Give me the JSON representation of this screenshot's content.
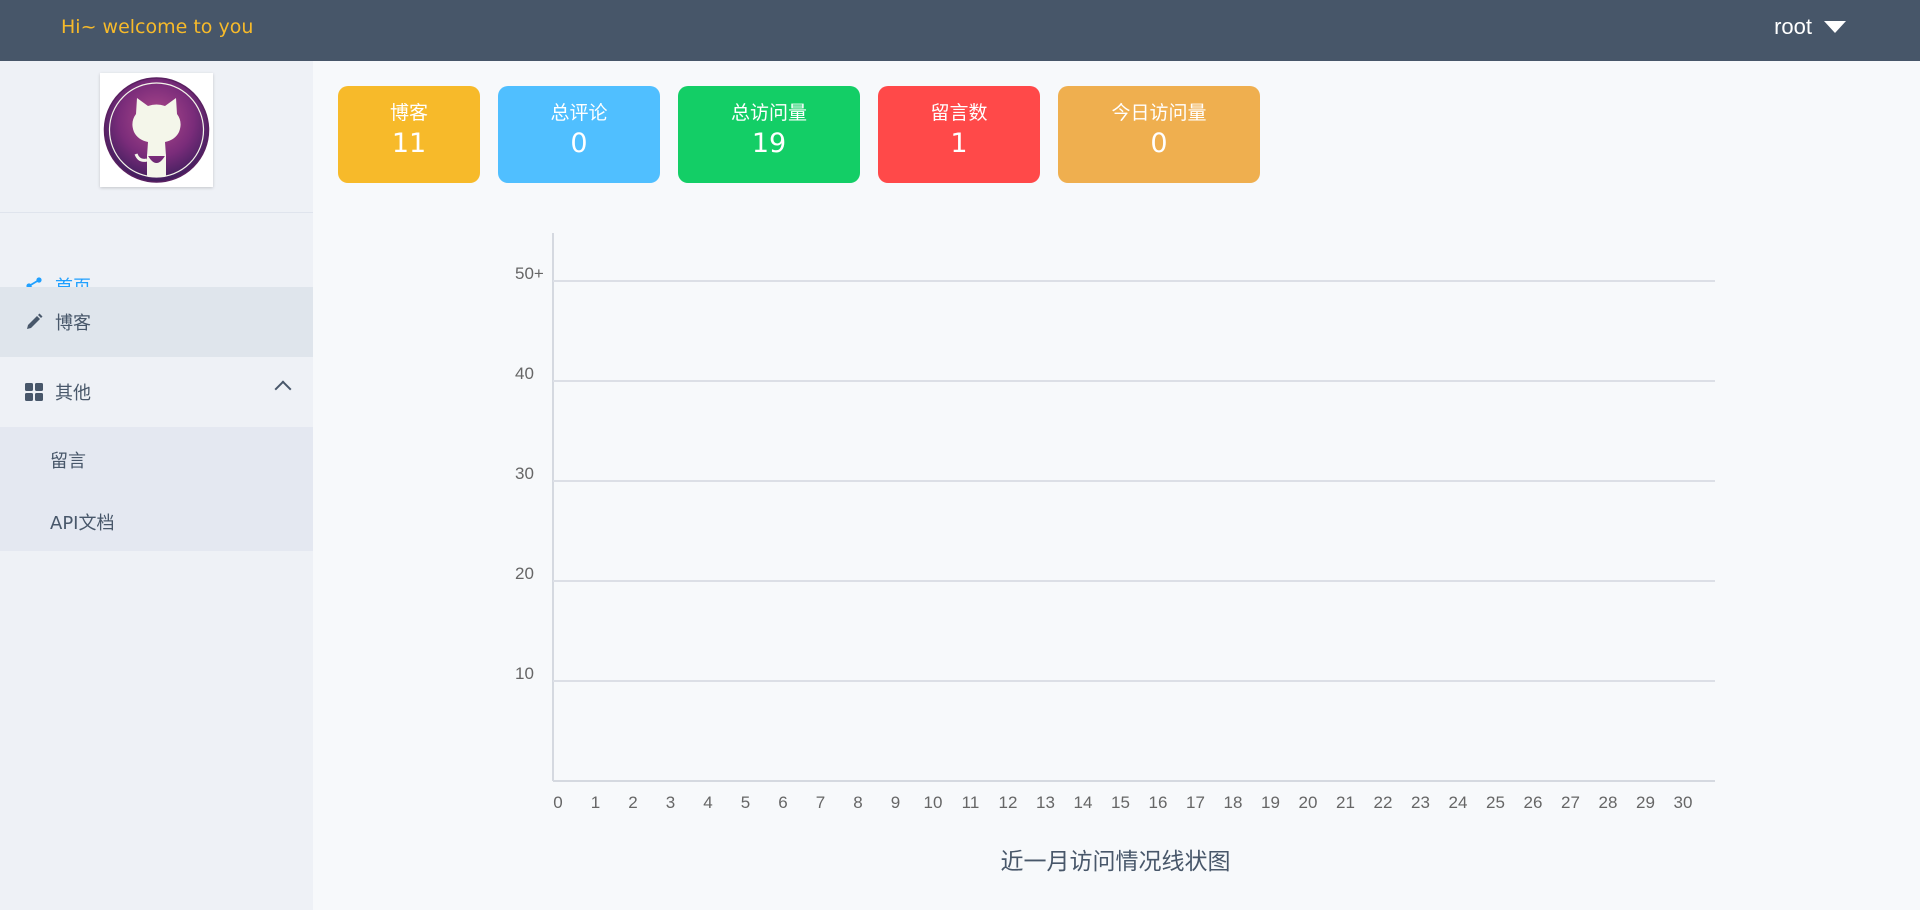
{
  "header": {
    "welcome": "Hi~ welcome to you",
    "user": "root"
  },
  "sidebar": {
    "menu": [
      {
        "label": "首页",
        "icon": "share-icon",
        "active": true
      },
      {
        "label": "博客",
        "icon": "pencil-icon",
        "active": false
      },
      {
        "label": "其他",
        "icon": "grid-icon",
        "expanded": true
      }
    ],
    "submenu": [
      {
        "label": "留言"
      },
      {
        "label": "API文档"
      }
    ]
  },
  "stats": [
    {
      "label": "博客",
      "value": "11",
      "color": "#f7ba2a"
    },
    {
      "label": "总评论",
      "value": "0",
      "color": "#50bfff"
    },
    {
      "label": "总访问量",
      "value": "19",
      "color": "#13ce66"
    },
    {
      "label": "留言数",
      "value": "1",
      "color": "#ff4949"
    },
    {
      "label": "今日访问量",
      "value": "0",
      "color": "#efaf4f"
    }
  ],
  "chart_data": {
    "type": "line",
    "title": "近一月访问情况线状图",
    "x": [
      0,
      1,
      2,
      3,
      4,
      5,
      6,
      7,
      8,
      9,
      10,
      11,
      12,
      13,
      14,
      15,
      16,
      17,
      18,
      19,
      20,
      21,
      22,
      23,
      24,
      25,
      26,
      27,
      28,
      29,
      30
    ],
    "y_ticks": [
      "10",
      "20",
      "30",
      "40",
      "50+"
    ],
    "ylim": [
      0,
      55
    ],
    "grid": true,
    "series": []
  }
}
